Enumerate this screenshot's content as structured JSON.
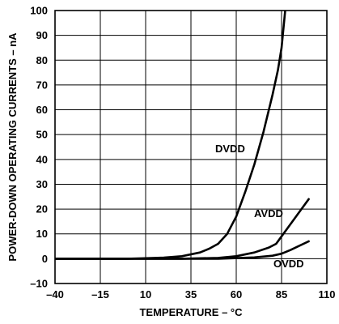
{
  "chart_data": {
    "type": "line",
    "title": "",
    "xlabel": "TEMPERATURE – °C",
    "ylabel": "POWER-DOWN OPERATING CURRENTS – nA",
    "xlim": [
      -40,
      110
    ],
    "ylim": [
      -10,
      100
    ],
    "x_ticks": [
      -40,
      -15,
      10,
      35,
      60,
      85,
      110
    ],
    "y_ticks": [
      -10,
      0,
      10,
      20,
      30,
      40,
      50,
      60,
      70,
      80,
      90,
      100
    ],
    "x_tick_labels": [
      "–40",
      "–15",
      "10",
      "35",
      "60",
      "85",
      "110"
    ],
    "y_tick_labels": [
      "–10",
      "0",
      "10",
      "20",
      "30",
      "40",
      "50",
      "60",
      "70",
      "80",
      "90",
      "100"
    ],
    "grid": true,
    "series": [
      {
        "name": "DVDD",
        "x": [
          -40,
          0,
          10,
          20,
          30,
          40,
          45,
          50,
          55,
          60,
          65,
          70,
          75,
          80,
          83,
          85,
          87
        ],
        "y": [
          0,
          0,
          0.2,
          0.4,
          1,
          2.5,
          4,
          6,
          10,
          17,
          27,
          38,
          51,
          66,
          76,
          85,
          100
        ]
      },
      {
        "name": "AVDD",
        "x": [
          -40,
          30,
          50,
          60,
          70,
          78,
          82,
          85,
          90,
          100
        ],
        "y": [
          0,
          0,
          0.3,
          1,
          2.5,
          4.5,
          6,
          9,
          14,
          24
        ]
      },
      {
        "name": "OVDD",
        "x": [
          -40,
          50,
          70,
          80,
          85,
          90,
          100
        ],
        "y": [
          0,
          0,
          0.5,
          1.2,
          2,
          3.5,
          7
        ]
      }
    ],
    "annotations": [
      {
        "text": "DVDD",
        "series": "DVDD"
      },
      {
        "text": "AVDD",
        "series": "AVDD"
      },
      {
        "text": "OVDD",
        "series": "OVDD"
      }
    ]
  }
}
